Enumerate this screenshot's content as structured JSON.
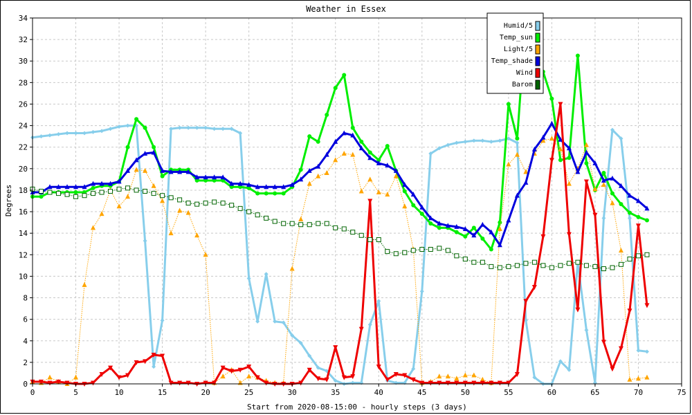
{
  "chart_data": {
    "type": "line",
    "title": "Weather in Essex",
    "xlabel": "Start from 2020-08-15:00 - hourly steps (3 days)",
    "ylabel": "Degrees",
    "xlim": [
      0,
      75
    ],
    "ylim": [
      0,
      34
    ],
    "xticks": [
      0,
      5,
      10,
      15,
      20,
      25,
      30,
      35,
      40,
      45,
      50,
      55,
      60,
      65,
      70,
      75
    ],
    "yticks": [
      0,
      2,
      4,
      6,
      8,
      10,
      12,
      14,
      16,
      18,
      20,
      22,
      24,
      26,
      28,
      30,
      32,
      34
    ],
    "grid": true,
    "legend_position": "top-right",
    "series": [
      {
        "name": "Humid/5",
        "color": "#87ceeb",
        "marker": "diamond",
        "style": "solid",
        "values": [
          22.9,
          23.0,
          23.1,
          23.2,
          23.3,
          23.3,
          23.3,
          23.4,
          23.5,
          23.7,
          23.9,
          24.0,
          24.0,
          13.3,
          1.6,
          5.9,
          23.7,
          23.8,
          23.8,
          23.8,
          23.8,
          23.7,
          23.7,
          23.7,
          23.3,
          9.8,
          5.8,
          10.2,
          5.8,
          5.7,
          4.5,
          3.8,
          2.6,
          1.5,
          1.2,
          0.3,
          0.0,
          0.1,
          0.1,
          5.5,
          7.7,
          0.3,
          0.1,
          0.1,
          1.4,
          8.6,
          21.4,
          21.9,
          22.2,
          22.4,
          22.5,
          22.6,
          22.6,
          22.5,
          22.6,
          22.8,
          22.4,
          5.9,
          0.6,
          0.0,
          0.0,
          2.1,
          1.3,
          11.3,
          5.0,
          0.1,
          15.4,
          23.6,
          22.8,
          15.4,
          3.1,
          3.0
        ]
      },
      {
        "name": "Temp_sun",
        "color": "#00ee00",
        "marker": "circle",
        "style": "solid",
        "values": [
          17.4,
          17.4,
          17.8,
          17.8,
          17.8,
          17.8,
          17.8,
          18.2,
          18.4,
          18.4,
          18.8,
          22.0,
          24.6,
          23.8,
          22.0,
          19.3,
          19.9,
          19.9,
          19.9,
          18.9,
          18.9,
          18.9,
          18.9,
          18.3,
          18.3,
          18.2,
          17.7,
          17.7,
          17.7,
          17.7,
          18.3,
          19.9,
          23.0,
          22.5,
          25.0,
          27.5,
          28.7,
          23.8,
          22.5,
          21.5,
          20.8,
          22.1,
          19.8,
          17.9,
          16.6,
          15.8,
          14.9,
          14.5,
          14.5,
          14.1,
          13.7,
          14.5,
          13.5,
          12.5,
          15.0,
          26.0,
          22.8,
          34.0,
          31.0,
          29.0,
          26.5,
          20.8,
          21.0,
          30.5,
          20.5,
          18.0,
          19.6,
          17.7,
          16.7,
          15.9,
          15.5,
          15.2
        ]
      },
      {
        "name": "Light/5",
        "color": "#ffa500",
        "marker": "triangle-up",
        "style": "dotted",
        "values": [
          0.2,
          0.1,
          0.6,
          0.2,
          0.0,
          0.6,
          9.2,
          14.5,
          15.8,
          18.0,
          16.5,
          17.4,
          19.9,
          19.8,
          18.4,
          17.0,
          14.0,
          16.1,
          15.9,
          13.8,
          12.0,
          0.1,
          0.7,
          1.3,
          0.1,
          0.7,
          0.6,
          0.3,
          0.1,
          0.1,
          10.7,
          15.3,
          18.6,
          19.3,
          19.6,
          20.8,
          21.4,
          21.3,
          17.9,
          19.0,
          17.8,
          17.6,
          19.3,
          16.5,
          12.5,
          0.1,
          0.2,
          0.7,
          0.7,
          0.5,
          0.8,
          0.8,
          0.4,
          0.1,
          14.4,
          20.4,
          21.3,
          19.7,
          21.4,
          22.6,
          22.8,
          21.8,
          18.6,
          20.0,
          22.2,
          18.1,
          18.5,
          16.8,
          12.4,
          0.4,
          0.5,
          0.6
        ]
      },
      {
        "name": "Temp_shade",
        "color": "#0000dd",
        "marker": "triangle-up",
        "style": "solid",
        "values": [
          17.8,
          17.8,
          18.3,
          18.3,
          18.3,
          18.3,
          18.3,
          18.6,
          18.6,
          18.6,
          18.8,
          19.8,
          20.8,
          21.4,
          21.5,
          19.8,
          19.7,
          19.7,
          19.7,
          19.2,
          19.2,
          19.2,
          19.2,
          18.6,
          18.6,
          18.5,
          18.3,
          18.3,
          18.3,
          18.3,
          18.5,
          19.0,
          19.8,
          20.2,
          21.3,
          22.5,
          23.3,
          23.1,
          21.9,
          21.0,
          20.5,
          20.3,
          19.8,
          18.5,
          17.6,
          16.4,
          15.4,
          14.9,
          14.7,
          14.6,
          14.4,
          13.8,
          14.8,
          14.1,
          12.9,
          15.2,
          17.5,
          18.7,
          21.8,
          22.9,
          24.2,
          22.7,
          21.9,
          19.7,
          21.5,
          20.5,
          18.9,
          19.1,
          18.4,
          17.5,
          17.0,
          16.3
        ]
      },
      {
        "name": "Wind",
        "color": "#ee0000",
        "marker": "triangle-down",
        "style": "solid",
        "values": [
          0.2,
          0.2,
          0.1,
          0.2,
          0.1,
          0.0,
          0.0,
          0.1,
          0.9,
          1.5,
          0.6,
          0.8,
          2.0,
          2.1,
          2.7,
          2.6,
          0.1,
          0.1,
          0.1,
          0.0,
          0.1,
          0.1,
          1.5,
          1.2,
          1.3,
          1.6,
          0.6,
          0.1,
          0.0,
          0.0,
          0.0,
          0.1,
          1.3,
          0.5,
          0.4,
          3.4,
          0.6,
          0.7,
          5.1,
          17.0,
          1.6,
          0.4,
          0.9,
          0.8,
          0.4,
          0.1,
          0.1,
          0.1,
          0.1,
          0.1,
          0.1,
          0.1,
          0.1,
          0.1,
          0.1,
          0.1,
          0.9,
          7.7,
          9.0,
          13.7,
          20.8,
          26.0,
          13.9,
          6.9,
          18.8,
          15.7,
          3.9,
          1.4,
          3.3,
          6.8,
          14.7,
          7.3
        ]
      },
      {
        "name": "Barom",
        "color": "#006400",
        "marker": "square",
        "style": "dotted",
        "values": [
          18.1,
          17.9,
          17.8,
          17.7,
          17.6,
          17.4,
          17.5,
          17.7,
          17.8,
          17.9,
          18.1,
          18.2,
          18.0,
          17.9,
          17.7,
          17.5,
          17.3,
          17.1,
          16.8,
          16.7,
          16.8,
          16.9,
          16.8,
          16.6,
          16.3,
          16.0,
          15.7,
          15.4,
          15.1,
          14.9,
          14.9,
          14.8,
          14.8,
          14.9,
          14.9,
          14.5,
          14.4,
          14.1,
          13.8,
          13.4,
          13.4,
          12.3,
          12.1,
          12.2,
          12.4,
          12.5,
          12.5,
          12.6,
          12.4,
          11.9,
          11.6,
          11.3,
          11.3,
          10.9,
          10.8,
          10.9,
          11.0,
          11.2,
          11.3,
          11.0,
          10.8,
          11.0,
          11.2,
          11.3,
          11.0,
          10.9,
          10.7,
          10.8,
          11.1,
          11.6,
          11.9,
          12.0
        ]
      }
    ]
  }
}
